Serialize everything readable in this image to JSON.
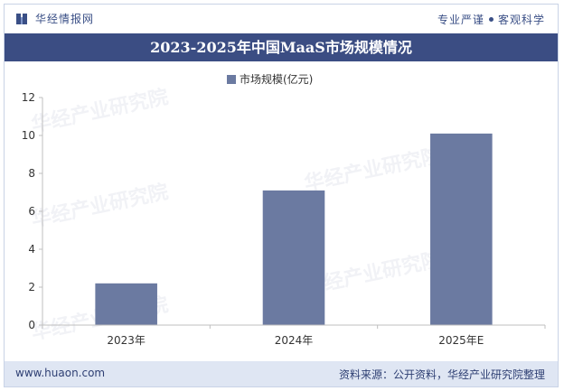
{
  "header": {
    "brand": "华经情报网",
    "tagline_left": "专业严谨",
    "tagline_right": "客观科学"
  },
  "title": "2023-2025年中国MaaS市场规模情况",
  "watermark": "华经产业研究院",
  "footer": {
    "url": "www.huaon.com",
    "source": "资料来源：公开资料，华经产业研究院整理"
  },
  "colors": {
    "bar": "#6b7aa1",
    "title_bg": "#3b4d83",
    "footer_bg": "#dfe6f3"
  },
  "chart_data": {
    "type": "bar",
    "categories": [
      "2023年",
      "2024年",
      "2025年E"
    ],
    "series": [
      {
        "name": "市场规模(亿元)",
        "values": [
          2.2,
          7.1,
          10.1
        ]
      }
    ],
    "ylim": [
      0,
      12
    ],
    "yticks": [
      0,
      2,
      4,
      6,
      8,
      10,
      12
    ],
    "legend_position": "top-center",
    "grid": false
  }
}
